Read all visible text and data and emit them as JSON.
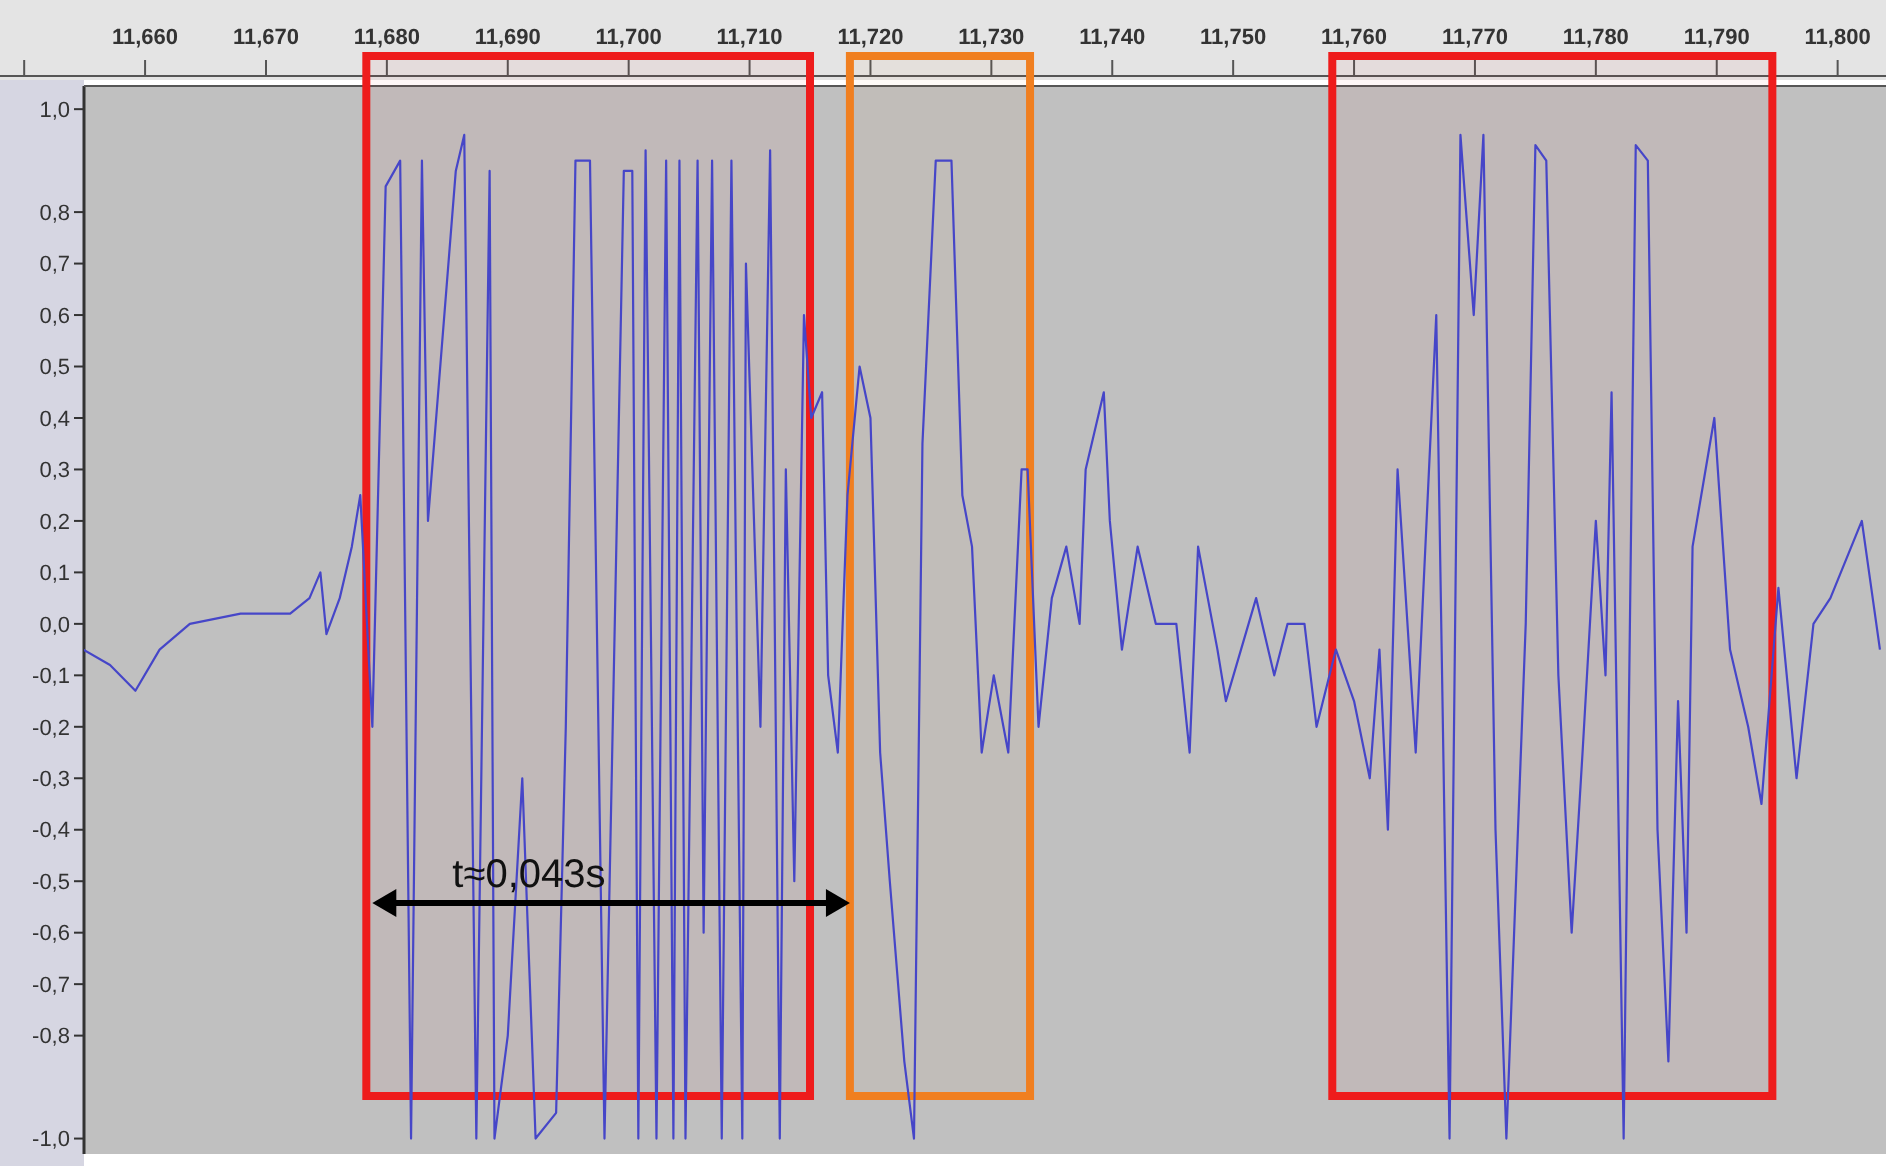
{
  "chart_data": {
    "type": "line",
    "x": [
      11.6549,
      11.6571,
      11.6592,
      11.6612,
      11.6637,
      11.6679,
      11.672,
      11.6736,
      11.6745,
      11.675,
      11.6761,
      11.6771,
      11.6778,
      11.6788,
      11.6799,
      11.6811,
      11.682,
      11.6829,
      11.6834,
      11.6857,
      11.6864,
      11.6874,
      11.6885,
      11.6889,
      11.69,
      11.6912,
      11.6923,
      11.694,
      11.6948,
      11.6956,
      11.6968,
      11.698,
      11.6996,
      11.7003,
      11.7008,
      11.7014,
      11.7023,
      11.7031,
      11.7037,
      11.7042,
      11.7047,
      11.7057,
      11.7062,
      11.7069,
      11.7077,
      11.7085,
      11.7094,
      11.7097,
      11.7109,
      11.7117,
      11.7125,
      11.713,
      11.7137,
      11.7145,
      11.7151,
      11.716,
      11.7165,
      11.7173,
      11.7181,
      11.7191,
      11.72,
      11.7208,
      11.7216,
      11.7228,
      11.7236,
      11.7243,
      11.7254,
      11.7267,
      11.7276,
      11.7284,
      11.7292,
      11.7302,
      11.7314,
      11.7325,
      11.733,
      11.7339,
      11.735,
      11.7362,
      11.7373,
      11.7378,
      11.7393,
      11.7398,
      11.7408,
      11.7421,
      11.7436,
      11.7453,
      11.7464,
      11.7471,
      11.7487,
      11.7494,
      11.7519,
      11.7534,
      11.7545,
      11.7559,
      11.7569,
      11.7585,
      11.76,
      11.7613,
      11.7621,
      11.7628,
      11.7636,
      11.7651,
      11.7668,
      11.7679,
      11.7688,
      11.7699,
      11.7707,
      11.7717,
      11.7726,
      11.7742,
      11.775,
      11.7759,
      11.7769,
      11.778,
      11.7789,
      11.78,
      11.7808,
      11.7813,
      11.7823,
      11.7833,
      11.7843,
      11.7851,
      11.786,
      11.7868,
      11.7875,
      11.788,
      11.7898,
      11.7911,
      11.7926,
      11.7937,
      11.7951,
      11.7966,
      11.798,
      11.7994,
      11.802,
      11.8035
    ],
    "series": [
      {
        "color": "#4646c8",
        "values": [
          -0.05,
          -0.08,
          -0.13,
          -0.05,
          0.0,
          0.02,
          0.02,
          0.05,
          0.1,
          -0.02,
          0.05,
          0.15,
          0.25,
          -0.2,
          0.85,
          0.9,
          -1.0,
          0.9,
          0.2,
          0.88,
          0.95,
          -1.0,
          0.88,
          -1.0,
          -0.8,
          -0.3,
          -1.0,
          -0.95,
          -0.2,
          0.9,
          0.9,
          -1.0,
          0.88,
          0.88,
          -1.0,
          0.92,
          -1.0,
          0.9,
          -1.0,
          0.9,
          -1.0,
          0.9,
          -0.6,
          0.9,
          -1.0,
          0.9,
          -1.0,
          0.7,
          -0.2,
          0.92,
          -1.0,
          0.3,
          -0.5,
          0.6,
          0.4,
          0.45,
          -0.1,
          -0.25,
          0.25,
          0.5,
          0.4,
          -0.25,
          -0.5,
          -0.85,
          -1.0,
          0.35,
          0.9,
          0.9,
          0.25,
          0.15,
          -0.25,
          -0.1,
          -0.25,
          0.3,
          0.3,
          -0.2,
          0.05,
          0.15,
          0.0,
          0.3,
          0.45,
          0.2,
          -0.05,
          0.15,
          0.0,
          0.0,
          -0.25,
          0.15,
          -0.05,
          -0.15,
          0.05,
          -0.1,
          0.0,
          0.0,
          -0.2,
          -0.05,
          -0.15,
          -0.3,
          -0.05,
          -0.4,
          0.3,
          -0.25,
          0.6,
          -1.0,
          0.95,
          0.6,
          0.95,
          -0.4,
          -1.0,
          0.0,
          0.93,
          0.9,
          -0.1,
          -0.6,
          -0.25,
          0.2,
          -0.1,
          0.45,
          -1.0,
          0.93,
          0.9,
          -0.4,
          -0.85,
          -0.15,
          -0.6,
          0.15,
          0.4,
          -0.05,
          -0.2,
          -0.35,
          0.07,
          -0.3,
          0.0,
          0.05,
          0.2,
          -0.05
        ]
      }
    ],
    "xlim": [
      11.648,
      11.804
    ],
    "xticks": [
      {
        "value": 11.65,
        "label": null
      },
      {
        "value": 11.66,
        "label": "11,660"
      },
      {
        "value": 11.67,
        "label": "11,670"
      },
      {
        "value": 11.68,
        "label": "11,680"
      },
      {
        "value": 11.69,
        "label": "11,690"
      },
      {
        "value": 11.7,
        "label": "11,700"
      },
      {
        "value": 11.71,
        "label": "11,710"
      },
      {
        "value": 11.72,
        "label": "11,720"
      },
      {
        "value": 11.73,
        "label": "11,730"
      },
      {
        "value": 11.74,
        "label": "11,740"
      },
      {
        "value": 11.75,
        "label": "11,750"
      },
      {
        "value": 11.76,
        "label": "11,760"
      },
      {
        "value": 11.77,
        "label": "11,770"
      },
      {
        "value": 11.78,
        "label": "11,780"
      },
      {
        "value": 11.79,
        "label": "11,790"
      },
      {
        "value": 11.8,
        "label": "11,800"
      }
    ],
    "ylim": [
      -1.03,
      1.045
    ],
    "yticks": [
      {
        "value": 1.0,
        "label": "1,0"
      },
      {
        "value": 0.8,
        "label": "0,8"
      },
      {
        "value": 0.7,
        "label": "0,7"
      },
      {
        "value": 0.6,
        "label": "0,6"
      },
      {
        "value": 0.5,
        "label": "0,5"
      },
      {
        "value": 0.4,
        "label": "0,4"
      },
      {
        "value": 0.3,
        "label": "0,3"
      },
      {
        "value": 0.2,
        "label": "0,2"
      },
      {
        "value": 0.1,
        "label": "0,1"
      },
      {
        "value": 0.0,
        "label": "0,0"
      },
      {
        "value": -0.1,
        "label": "-0,1"
      },
      {
        "value": -0.2,
        "label": "-0,2"
      },
      {
        "value": -0.3,
        "label": "-0,3"
      },
      {
        "value": -0.4,
        "label": "-0,4"
      },
      {
        "value": -0.5,
        "label": "-0,5"
      },
      {
        "value": -0.6,
        "label": "-0,6"
      },
      {
        "value": -0.7,
        "label": "-0,7"
      },
      {
        "value": -0.8,
        "label": "-0,8"
      },
      {
        "value": -1.0,
        "label": "-1,0"
      }
    ],
    "bands": [
      {
        "axis": "x",
        "from": 11.6783,
        "to": 11.715,
        "color": "#ee1c1c"
      },
      {
        "axis": "x",
        "from": 11.7183,
        "to": 11.7332,
        "color": "#f07f20"
      },
      {
        "axis": "x",
        "from": 11.7582,
        "to": 11.7946,
        "color": "#ee1c1c"
      }
    ],
    "annotations": [
      "t≈0,043s"
    ],
    "marker": "none",
    "line_style": "solid",
    "grid": false
  }
}
